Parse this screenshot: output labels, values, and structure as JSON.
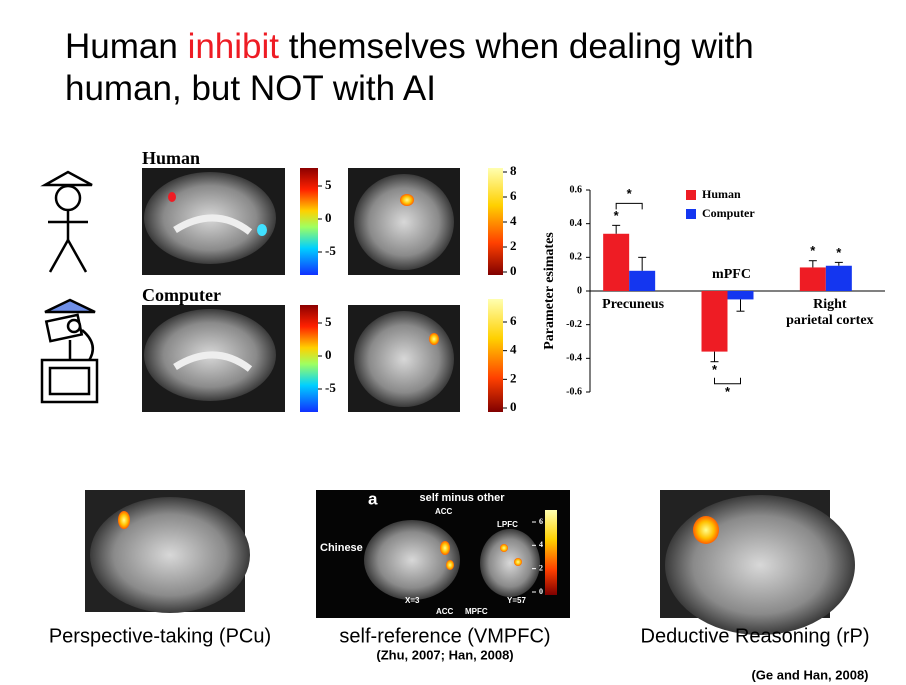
{
  "title": {
    "before": "Human ",
    "highlight": "inhibit",
    "after": " themselves when dealing with human, but NOT with AI"
  },
  "brain_panels": {
    "rows": [
      {
        "label": "Human",
        "sagittal_scale": [
          5,
          0,
          -5
        ],
        "coronal_scale": [
          8,
          6,
          4,
          2,
          0
        ]
      },
      {
        "label": "Computer",
        "sagittal_scale": [
          5,
          0,
          -5
        ],
        "coronal_scale": [
          6,
          4,
          2,
          0
        ]
      }
    ]
  },
  "chart_data": {
    "type": "bar",
    "y_label": "Parameter esimates",
    "categories": [
      "Precuneus",
      "mPFC",
      "Right parietal cortex"
    ],
    "series": [
      {
        "name": "Human",
        "color": "#ee1c24",
        "values": [
          0.34,
          -0.36,
          0.14
        ],
        "errors": [
          0.05,
          0.06,
          0.04
        ],
        "significance": [
          "*",
          "*",
          "*"
        ]
      },
      {
        "name": "Computer",
        "color": "#1436f0",
        "values": [
          0.12,
          -0.05,
          0.15
        ],
        "errors": [
          0.08,
          0.07,
          0.02
        ],
        "significance": [
          null,
          null,
          "*"
        ]
      }
    ],
    "comparison_significance": [
      "*",
      "*",
      null
    ],
    "ylim": [
      -0.6,
      0.6
    ],
    "yticks": [
      0.6,
      0.4,
      0.2,
      0,
      -0.2,
      -0.4,
      -0.6
    ],
    "legend": "top-right"
  },
  "studies": [
    {
      "caption": "Perspective-taking (PCu)"
    },
    {
      "caption": "self-reference (VMPFC)",
      "reference": "(Zhu, 2007; Han, 2008)",
      "panel": {
        "letter": "a",
        "heading": "self minus other",
        "group": "Chinese",
        "acc_top": "ACC",
        "lpfc": "LPFC",
        "x_coord": "X=3",
        "acc_bottom": "ACC",
        "mpfc": "MPFC",
        "y_coord": "Y=57",
        "scale": [
          6,
          4,
          2,
          0
        ]
      }
    },
    {
      "caption": "Deductive Reasoning (rP)"
    }
  ],
  "citation": "(Ge and Han, 2008)"
}
